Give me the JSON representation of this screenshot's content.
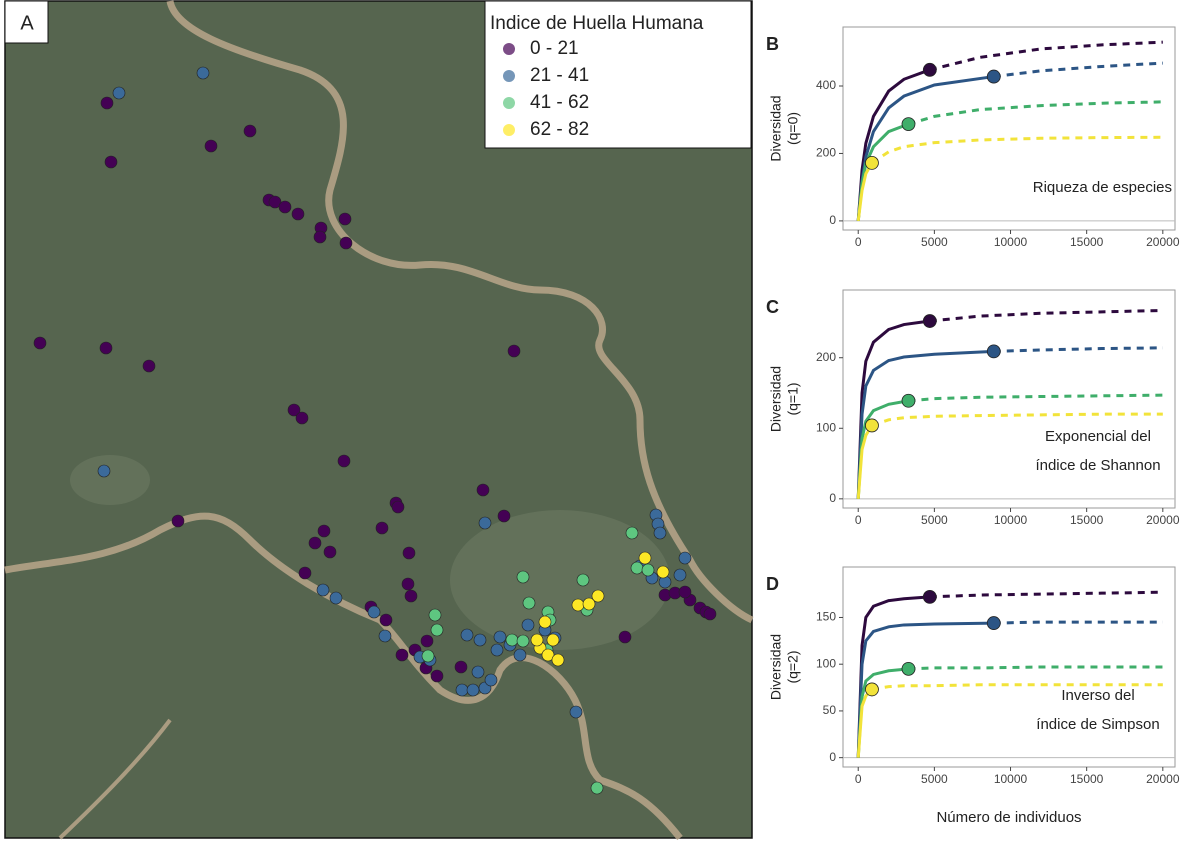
{
  "chart_data": [
    {
      "type": "map",
      "label": "A",
      "legend": {
        "title": "Indice de Huella Humana",
        "entries": [
          {
            "label": "0 - 21",
            "color": "#440154"
          },
          {
            "label": "21 - 41",
            "color": "#3b6a9a"
          },
          {
            "label": "41 - 62",
            "color": "#5ec680"
          },
          {
            "label": "62 - 82",
            "color": "#fde725"
          }
        ]
      }
    },
    {
      "type": "line",
      "label": "B",
      "ylabel": [
        "Diversidad",
        "(q=0)"
      ],
      "annotation": [
        "Riqueza de especies"
      ],
      "xlim": [
        -1000,
        20800
      ],
      "xticks": [
        0,
        5000,
        10000,
        15000,
        20000
      ],
      "ylim": [
        -27,
        575
      ],
      "yticks": [
        0,
        200,
        400
      ],
      "series": [
        {
          "color": "#2d0a3e",
          "observed_x": 4700,
          "x": [
            0,
            250,
            500,
            1000,
            2000,
            3000,
            4700,
            8000,
            12000,
            16000,
            20000
          ],
          "values": [
            0,
            150,
            230,
            310,
            385,
            420,
            448,
            485,
            510,
            522,
            530
          ]
        },
        {
          "color": "#2c5585",
          "observed_x": 8900,
          "x": [
            0,
            250,
            500,
            1000,
            2000,
            3000,
            5000,
            8900,
            12000,
            16000,
            20000
          ],
          "values": [
            0,
            120,
            190,
            265,
            335,
            370,
            403,
            428,
            445,
            458,
            468
          ]
        },
        {
          "color": "#3fae6a",
          "observed_x": 3300,
          "x": [
            0,
            250,
            500,
            1000,
            2000,
            3300,
            5000,
            8000,
            12000,
            16000,
            20000
          ],
          "values": [
            0,
            110,
            170,
            220,
            265,
            287,
            310,
            330,
            342,
            349,
            353
          ]
        },
        {
          "color": "#f2e33a",
          "observed_x": 900,
          "x": [
            0,
            250,
            500,
            900,
            2000,
            3000,
            5000,
            8000,
            12000,
            16000,
            20000
          ],
          "values": [
            0,
            90,
            140,
            172,
            205,
            220,
            232,
            240,
            245,
            247,
            248
          ]
        }
      ]
    },
    {
      "type": "line",
      "label": "C",
      "ylabel": [
        "Diversidad",
        "(q=1)"
      ],
      "annotation": [
        "Exponencial del",
        "índice de Shannon"
      ],
      "xlim": [
        -1000,
        20800
      ],
      "xticks": [
        0,
        5000,
        10000,
        15000,
        20000
      ],
      "ylim": [
        -13,
        296
      ],
      "yticks": [
        0,
        100,
        200
      ],
      "series": [
        {
          "color": "#2d0a3e",
          "observed_x": 4700,
          "x": [
            0,
            250,
            500,
            1000,
            2000,
            3000,
            4700,
            8000,
            12000,
            16000,
            20000
          ],
          "values": [
            0,
            150,
            195,
            222,
            240,
            247,
            252,
            259,
            263,
            265,
            267
          ]
        },
        {
          "color": "#2c5585",
          "observed_x": 8900,
          "x": [
            0,
            250,
            500,
            1000,
            2000,
            3000,
            5000,
            8900,
            12000,
            16000,
            20000
          ],
          "values": [
            0,
            120,
            160,
            182,
            196,
            201,
            205,
            209,
            211,
            213,
            214
          ]
        },
        {
          "color": "#3fae6a",
          "observed_x": 3300,
          "x": [
            0,
            250,
            500,
            1000,
            2000,
            3300,
            5000,
            8000,
            12000,
            16000,
            20000
          ],
          "values": [
            0,
            85,
            110,
            125,
            134,
            139,
            142,
            144,
            145,
            146,
            147
          ]
        },
        {
          "color": "#f2e33a",
          "observed_x": 900,
          "x": [
            0,
            250,
            500,
            900,
            2000,
            3000,
            5000,
            8000,
            12000,
            16000,
            20000
          ],
          "values": [
            0,
            70,
            90,
            104,
            112,
            115,
            117,
            118,
            119,
            120,
            120
          ]
        }
      ]
    },
    {
      "type": "line",
      "label": "D",
      "ylabel": [
        "Diversidad",
        "(q=2)"
      ],
      "annotation": [
        "Inverso del",
        "índice de Simpson"
      ],
      "xlabel": "Número de individuos",
      "xlim": [
        -1000,
        20800
      ],
      "xticks": [
        0,
        5000,
        10000,
        15000,
        20000
      ],
      "ylim": [
        -10,
        204
      ],
      "yticks": [
        0,
        50,
        100,
        150
      ],
      "series": [
        {
          "color": "#2d0a3e",
          "observed_x": 4700,
          "x": [
            0,
            250,
            500,
            1000,
            2000,
            3000,
            4700,
            8000,
            12000,
            16000,
            20000
          ],
          "values": [
            0,
            120,
            150,
            162,
            168,
            170,
            172,
            174,
            175,
            176,
            177
          ]
        },
        {
          "color": "#2c5585",
          "observed_x": 8900,
          "x": [
            0,
            250,
            500,
            1000,
            2000,
            3000,
            5000,
            8900,
            12000,
            16000,
            20000
          ],
          "values": [
            0,
            100,
            125,
            135,
            140,
            142,
            143,
            144,
            145,
            145,
            145
          ]
        },
        {
          "color": "#3fae6a",
          "observed_x": 3300,
          "x": [
            0,
            250,
            500,
            1000,
            2000,
            3300,
            5000,
            8000,
            12000,
            16000,
            20000
          ],
          "values": [
            0,
            65,
            82,
            89,
            93,
            95,
            96,
            96,
            97,
            97,
            97
          ]
        },
        {
          "color": "#f2e33a",
          "observed_x": 900,
          "x": [
            0,
            250,
            500,
            900,
            2000,
            3000,
            5000,
            8000,
            12000,
            16000,
            20000
          ],
          "values": [
            0,
            55,
            66,
            73,
            76,
            77,
            77,
            78,
            78,
            78,
            78
          ]
        }
      ]
    }
  ]
}
